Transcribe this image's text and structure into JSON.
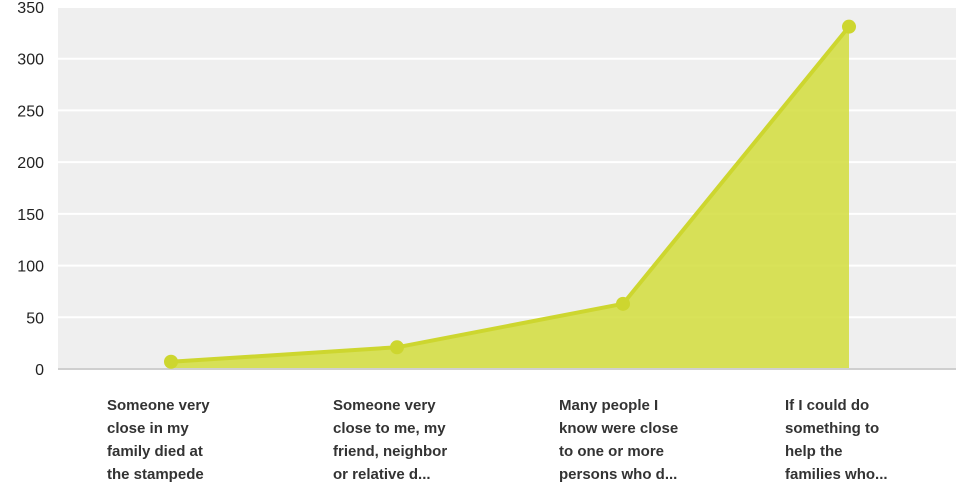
{
  "chart_data": {
    "type": "area",
    "categories": [
      [
        "Someone very",
        "close in my",
        "family died at",
        "the stampede"
      ],
      [
        "Someone very",
        "close to me, my",
        "friend, neighbor",
        "or relative d..."
      ],
      [
        "Many people I",
        "know were close",
        "to one or more",
        "persons who d..."
      ],
      [
        "If I could do",
        "something to",
        "help the",
        "families who..."
      ]
    ],
    "values": [
      7,
      21,
      63,
      331
    ],
    "yticks": [
      0,
      50,
      100,
      150,
      200,
      250,
      300,
      350
    ],
    "ylim": [
      0,
      350
    ],
    "grid": true,
    "colors": {
      "fill": "#d2dd3c",
      "line": "#cdd62f",
      "marker": "#cdd62f",
      "plot_bg": "#efefef",
      "grid": "#ffffff"
    }
  }
}
